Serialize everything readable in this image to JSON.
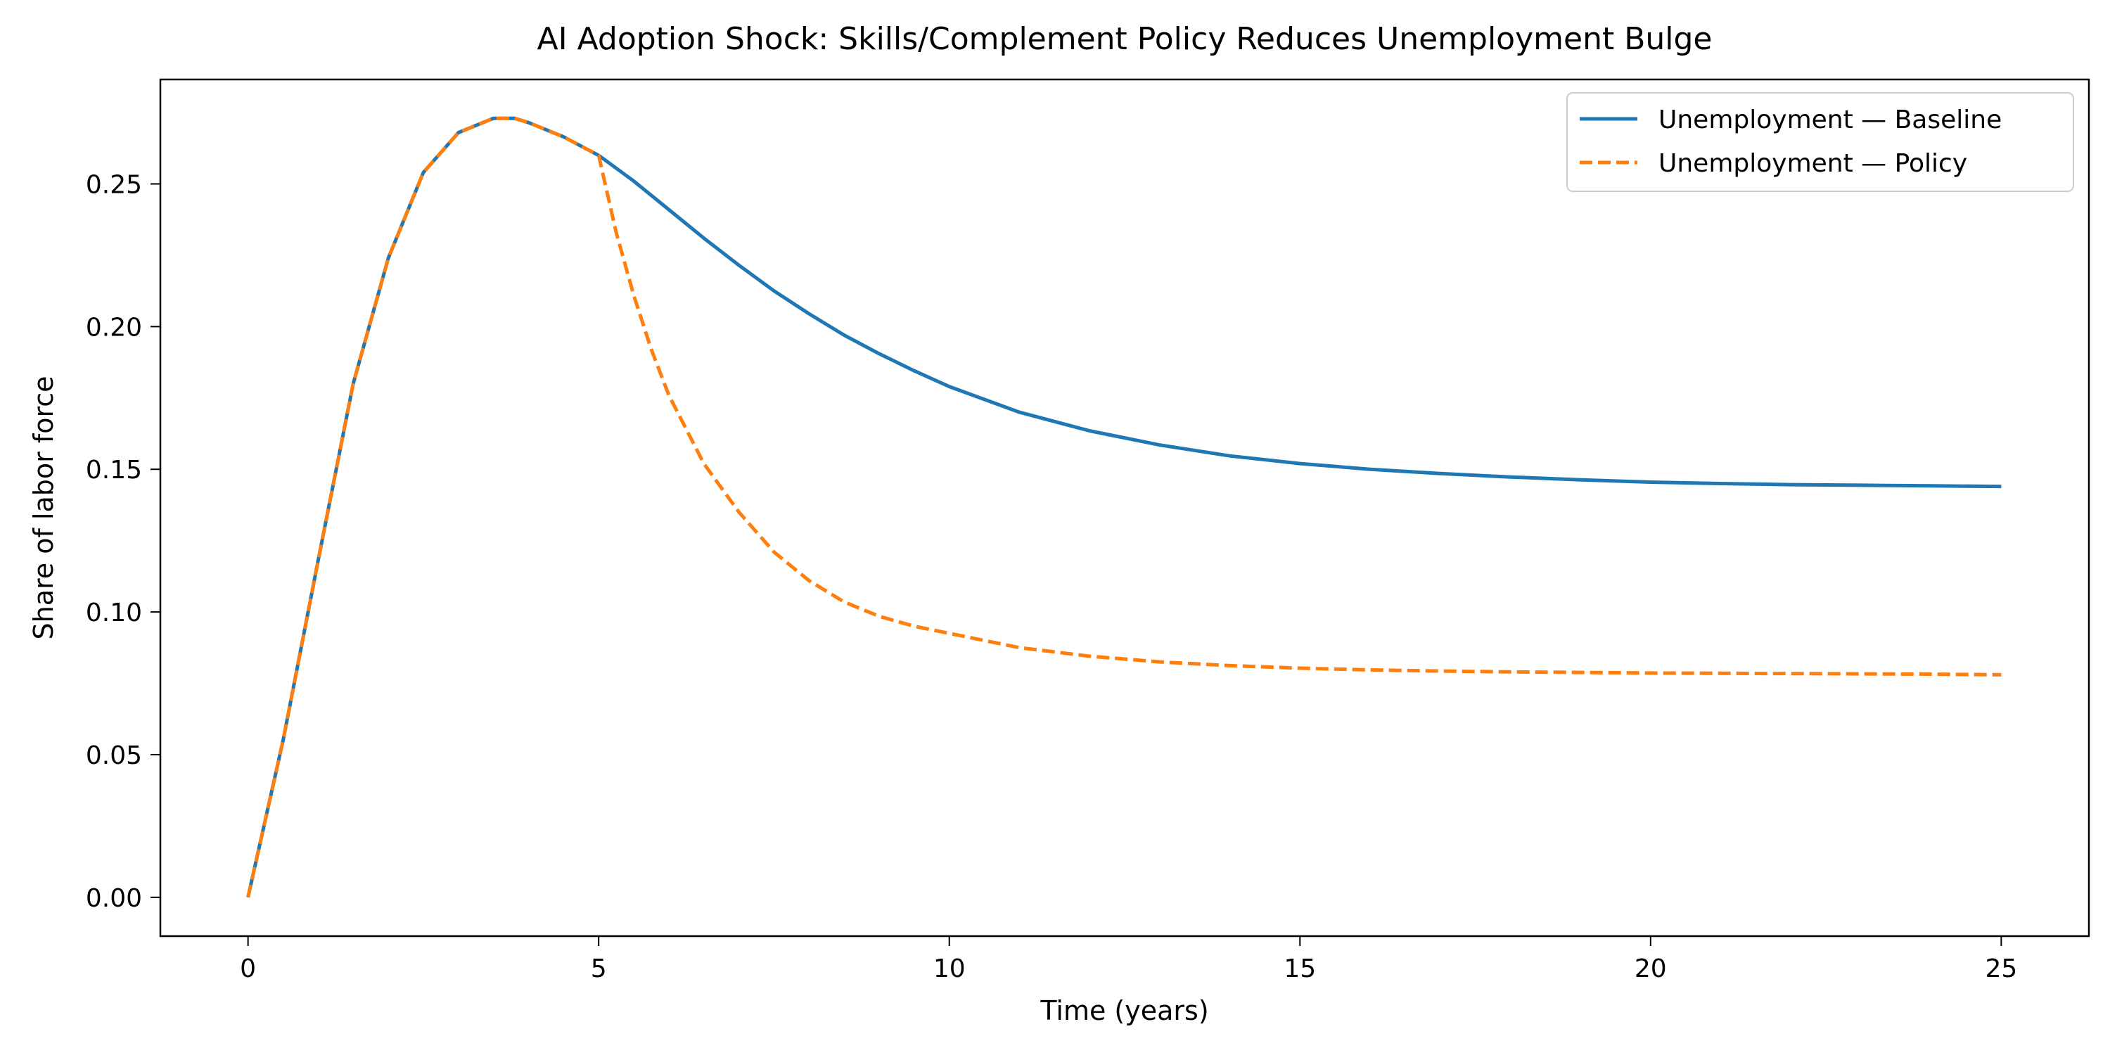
{
  "chart_data": {
    "type": "line",
    "title": "AI Adoption Shock: Skills/Complement Policy Reduces Unemployment Bulge",
    "xlabel": "Time (years)",
    "ylabel": "Share of labor force",
    "xlim": [
      -1.25,
      26.25
    ],
    "ylim": [
      -0.0136,
      0.2866
    ],
    "xticks": [
      0,
      5,
      10,
      15,
      20,
      25
    ],
    "xtick_labels": [
      "0",
      "5",
      "10",
      "15",
      "20",
      "25"
    ],
    "yticks": [
      0.0,
      0.05,
      0.1,
      0.15,
      0.2,
      0.25
    ],
    "ytick_labels": [
      "0.00",
      "0.05",
      "0.10",
      "0.15",
      "0.20",
      "0.25"
    ],
    "grid": false,
    "legend_position": "top-right",
    "series": [
      {
        "name": "Unemployment — Baseline",
        "color": "#1f77b4",
        "line_style": "solid",
        "x": [
          0,
          0.5,
          1,
          1.5,
          2,
          2.5,
          3,
          3.5,
          3.8,
          4,
          4.5,
          5,
          5.5,
          6,
          6.5,
          7,
          7.5,
          8,
          8.5,
          9,
          9.5,
          10,
          11,
          12,
          13,
          14,
          15,
          16,
          17,
          18,
          19,
          20,
          21,
          22,
          23,
          24,
          25
        ],
        "y": [
          0.0,
          0.055,
          0.118,
          0.18,
          0.224,
          0.254,
          0.268,
          0.273,
          0.273,
          0.2715,
          0.2665,
          0.26,
          0.251,
          0.241,
          0.231,
          0.2215,
          0.2125,
          0.2045,
          0.197,
          0.1905,
          0.1845,
          0.179,
          0.17,
          0.1635,
          0.1585,
          0.1547,
          0.152,
          0.15,
          0.1485,
          0.1473,
          0.1463,
          0.1455,
          0.145,
          0.1446,
          0.1444,
          0.1442,
          0.144
        ]
      },
      {
        "name": "Unemployment — Policy",
        "color": "#ff7f0e",
        "line_style": "dashed",
        "x": [
          0,
          0.5,
          1,
          1.5,
          2,
          2.5,
          3,
          3.5,
          3.8,
          4,
          4.5,
          5,
          5.25,
          5.5,
          5.75,
          6,
          6.5,
          7,
          7.5,
          8,
          8.5,
          9,
          9.5,
          10,
          11,
          12,
          13,
          14,
          15,
          16,
          17,
          18,
          19,
          20,
          21,
          22,
          23,
          24,
          25
        ],
        "y": [
          0.0,
          0.055,
          0.118,
          0.18,
          0.224,
          0.254,
          0.268,
          0.273,
          0.273,
          0.2715,
          0.2665,
          0.26,
          0.233,
          0.211,
          0.192,
          0.176,
          0.152,
          0.135,
          0.121,
          0.111,
          0.1035,
          0.0985,
          0.095,
          0.0925,
          0.0875,
          0.0845,
          0.0825,
          0.0812,
          0.0803,
          0.0797,
          0.0793,
          0.079,
          0.0788,
          0.0786,
          0.0785,
          0.0784,
          0.0783,
          0.0782,
          0.078
        ]
      }
    ]
  }
}
